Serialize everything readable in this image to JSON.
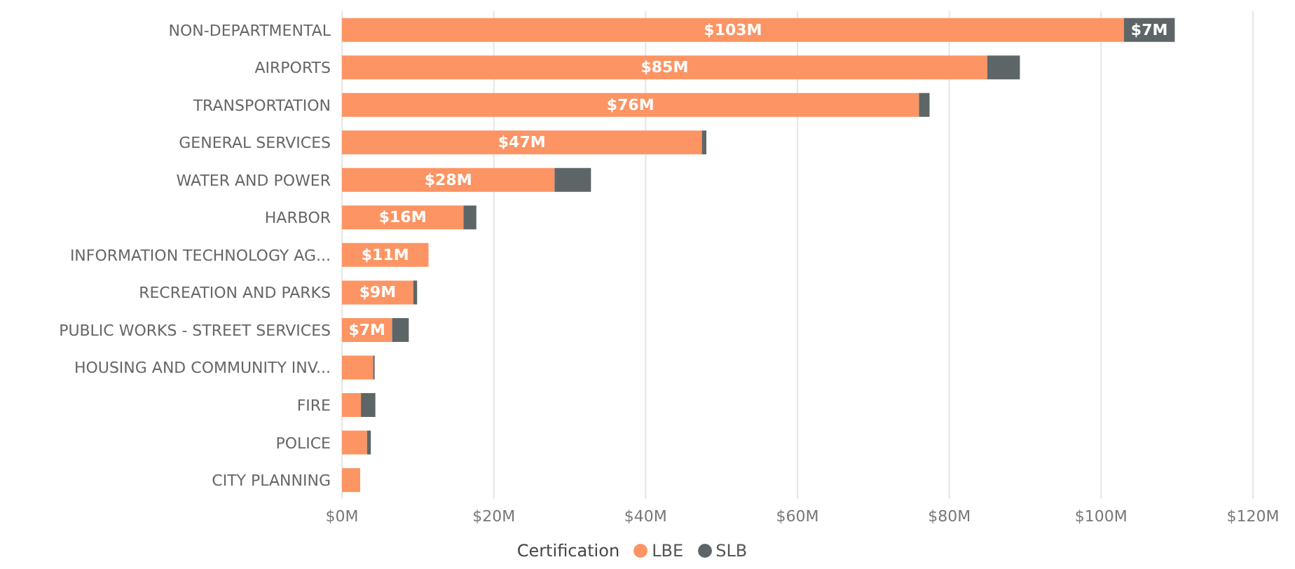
{
  "chart_data": {
    "type": "bar",
    "orientation": "horizontal",
    "stacked": true,
    "categories": [
      "NON-DEPARTMENTAL",
      "AIRPORTS",
      "TRANSPORTATION",
      "GENERAL SERVICES",
      "WATER AND POWER",
      "HARBOR",
      "INFORMATION TECHNOLOGY AG...",
      "RECREATION AND PARKS",
      "PUBLIC WORKS - STREET SERVICES",
      "HOUSING AND COMMUNITY INV...",
      "FIRE",
      "POLICE",
      "CITY PLANNING"
    ],
    "series": [
      {
        "name": "LBE",
        "color": "#fd9463",
        "values": [
          103,
          85,
          76,
          47.4,
          28,
          16,
          11.4,
          9.4,
          6.6,
          4.1,
          2.5,
          3.3,
          2.4
        ],
        "value_labels": [
          "$103M",
          "$85M",
          "$76M",
          "$47M",
          "$28M",
          "$16M",
          "$11M",
          "$9M",
          "$7M",
          null,
          null,
          null,
          null
        ]
      },
      {
        "name": "SLB",
        "color": "#5d6567",
        "values": [
          6.7,
          4.3,
          1.4,
          0.6,
          4.8,
          1.7,
          0,
          0.5,
          2.2,
          0.2,
          1.9,
          0.5,
          0
        ],
        "value_labels": [
          "$7M",
          null,
          null,
          null,
          null,
          null,
          null,
          null,
          null,
          null,
          null,
          null,
          null
        ]
      }
    ],
    "xlim": [
      0,
      120
    ],
    "xticks": [
      {
        "value": 0,
        "label": "$0M"
      },
      {
        "value": 20,
        "label": "$20M"
      },
      {
        "value": 40,
        "label": "$40M"
      },
      {
        "value": 60,
        "label": "$60M"
      },
      {
        "value": 80,
        "label": "$80M"
      },
      {
        "value": 100,
        "label": "$100M"
      },
      {
        "value": 120,
        "label": "$120M"
      }
    ],
    "grid": "x",
    "legend": "bottom",
    "legend_title": "Certification"
  }
}
